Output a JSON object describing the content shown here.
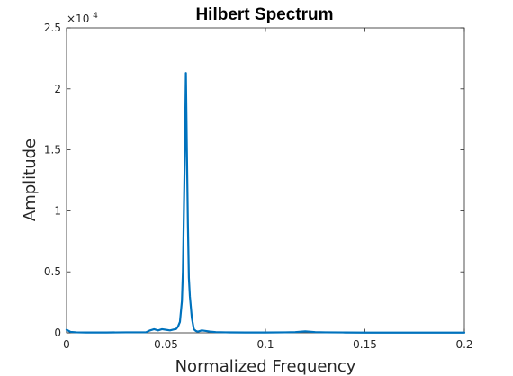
{
  "chart_data": {
    "type": "line",
    "title": "Hilbert Spectrum",
    "xlabel": "Normalized Frequency",
    "ylabel": "Amplitude",
    "xlim": [
      0,
      0.2
    ],
    "ylim": [
      0,
      25000
    ],
    "x_ticks": [
      0,
      0.05,
      0.1,
      0.15,
      0.2
    ],
    "x_tick_labels": [
      "0",
      "0.05",
      "0.1",
      "0.15",
      "0.2"
    ],
    "y_ticks": [
      0,
      5000,
      10000,
      15000,
      20000,
      25000
    ],
    "y_tick_labels": [
      "0",
      "0.5",
      "1",
      "1.5",
      "2",
      "2.5"
    ],
    "y_exponent": {
      "base": "×10",
      "power": "4"
    },
    "grid": false,
    "line_color": "#0072bd",
    "series": [
      {
        "x": [
          0,
          0.002,
          0.005,
          0.01,
          0.02,
          0.03,
          0.04,
          0.042,
          0.044,
          0.046,
          0.048,
          0.05,
          0.052,
          0.054,
          0.055,
          0.056,
          0.057,
          0.058,
          0.0585,
          0.059,
          0.0595,
          0.06,
          0.0605,
          0.061,
          0.0615,
          0.062,
          0.063,
          0.064,
          0.065,
          0.066,
          0.068,
          0.07,
          0.072,
          0.075,
          0.08,
          0.09,
          0.1,
          0.11,
          0.115,
          0.12,
          0.125,
          0.13,
          0.14,
          0.15,
          0.16,
          0.17,
          0.18,
          0.19,
          0.2
        ],
        "y": [
          250,
          80,
          40,
          30,
          30,
          40,
          50,
          200,
          300,
          200,
          300,
          250,
          200,
          280,
          300,
          500,
          900,
          2600,
          5000,
          10000,
          15000,
          21300,
          15000,
          9000,
          4500,
          3000,
          1200,
          300,
          150,
          100,
          200,
          150,
          100,
          60,
          40,
          30,
          30,
          40,
          60,
          120,
          60,
          40,
          30,
          20,
          20,
          20,
          20,
          20,
          20
        ]
      }
    ]
  }
}
